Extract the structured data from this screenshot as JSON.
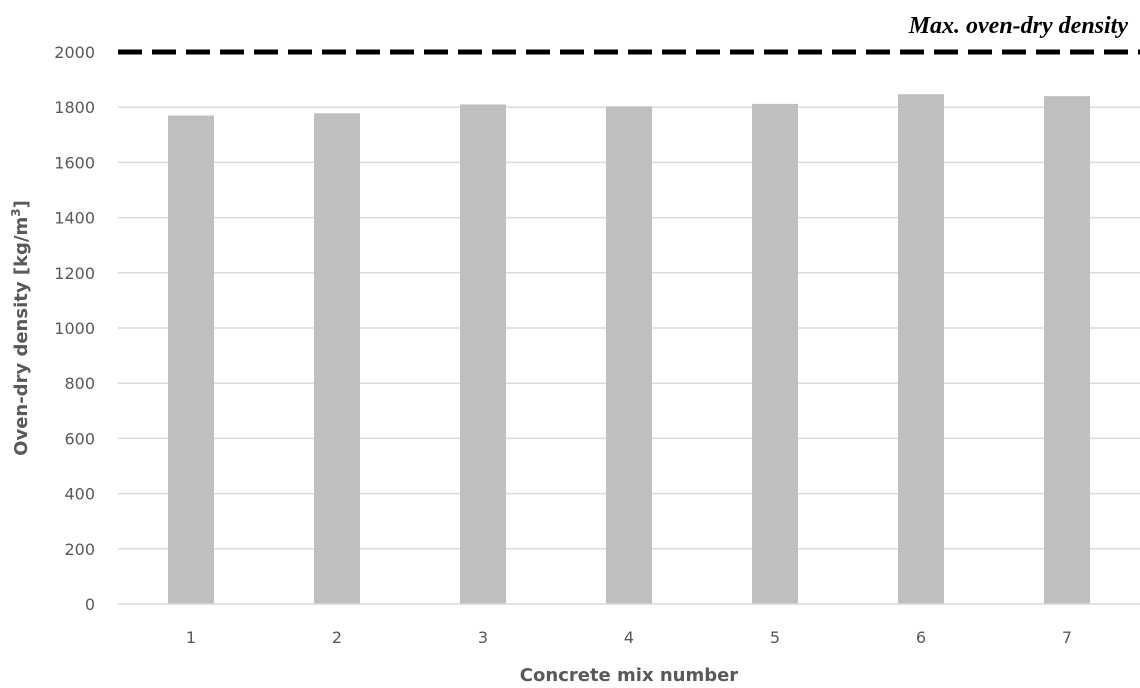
{
  "chart_data": {
    "type": "bar",
    "categories": [
      "1",
      "2",
      "3",
      "4",
      "5",
      "6",
      "7"
    ],
    "values": [
      1770,
      1778,
      1810,
      1803,
      1812,
      1847,
      1840
    ],
    "xlabel": "Concrete mix number",
    "ylabel_main": "Oven-dry density [kg/m",
    "ylabel_sup": "3",
    "ylabel_close": "]",
    "ylim": [
      0,
      2000
    ],
    "yticks": [
      0,
      200,
      400,
      600,
      800,
      1000,
      1200,
      1400,
      1600,
      1800,
      2000
    ],
    "grid": true,
    "bar_color": "#bfbfbf",
    "grid_color": "#d9d9d9",
    "reference_line": {
      "value": 2000,
      "label": "Max. oven-dry density",
      "style": "dashed",
      "color": "#000000"
    }
  }
}
